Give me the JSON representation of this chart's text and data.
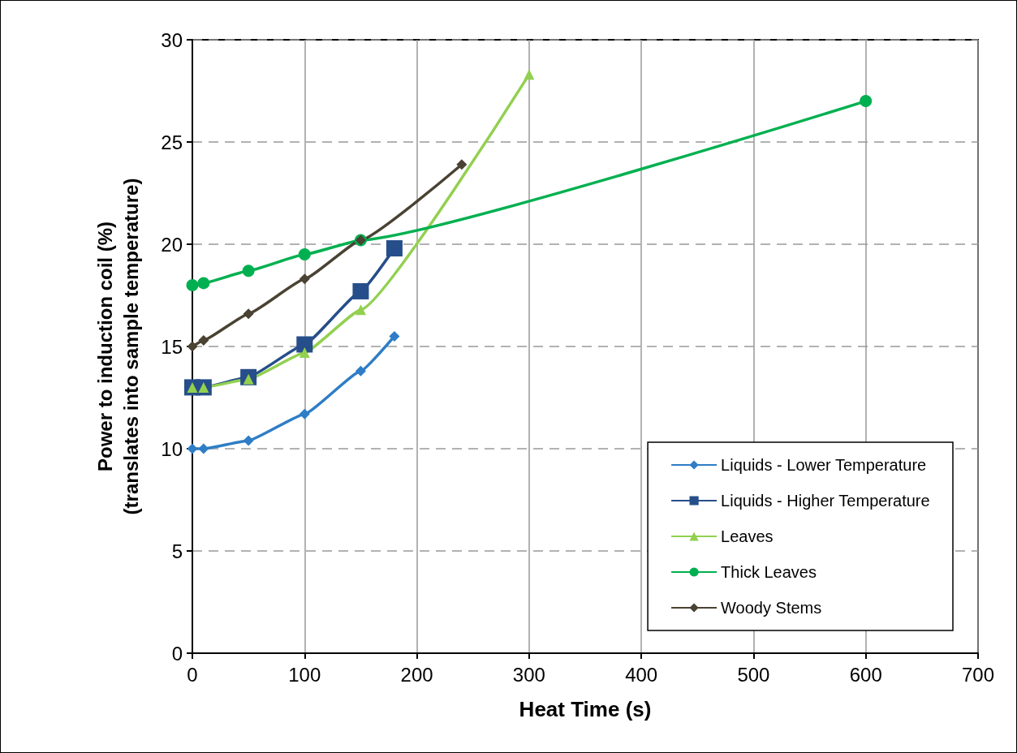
{
  "chart_data": {
    "type": "line",
    "xlabel": "Heat Time (s)",
    "ylabel": "Power to induction coil (%)\n(translates into sample temperature)",
    "xlim": [
      0,
      700
    ],
    "xticks": [
      0,
      100,
      200,
      300,
      400,
      500,
      600,
      700
    ],
    "ylim": [
      0,
      30
    ],
    "yticks": [
      0,
      5,
      10,
      15,
      20,
      25,
      30
    ],
    "grid": true,
    "legend": "bottom right",
    "series": [
      {
        "name": "Liquids - Lower Temperature",
        "color": "#2e7dc6",
        "marker": "diamond",
        "x": [
          0,
          10,
          50,
          100,
          150,
          180
        ],
        "values": [
          10,
          10,
          10.4,
          11.7,
          13.8,
          15.5
        ]
      },
      {
        "name": "Liquids - Higher Temperature",
        "color": "#264e8a",
        "marker": "square",
        "x": [
          0,
          10,
          50,
          100,
          150,
          180
        ],
        "values": [
          13,
          13,
          13.5,
          15.1,
          17.7,
          19.8
        ]
      },
      {
        "name": "Leaves",
        "color": "#92d050",
        "marker": "triangle",
        "x": [
          0,
          10,
          50,
          100,
          150,
          300
        ],
        "values": [
          13,
          13,
          13.4,
          14.7,
          16.8,
          28.3
        ]
      },
      {
        "name": "Thick Leaves",
        "color": "#00b050",
        "marker": "circle",
        "x": [
          0,
          10,
          50,
          100,
          150,
          600
        ],
        "values": [
          18,
          18.1,
          18.7,
          19.5,
          20.2,
          27
        ]
      },
      {
        "name": "Woody Stems",
        "color": "#4a4232",
        "marker": "diamond",
        "x": [
          0,
          10,
          50,
          100,
          150,
          240
        ],
        "values": [
          15,
          15.3,
          16.6,
          18.3,
          20.2,
          23.9
        ]
      }
    ]
  }
}
